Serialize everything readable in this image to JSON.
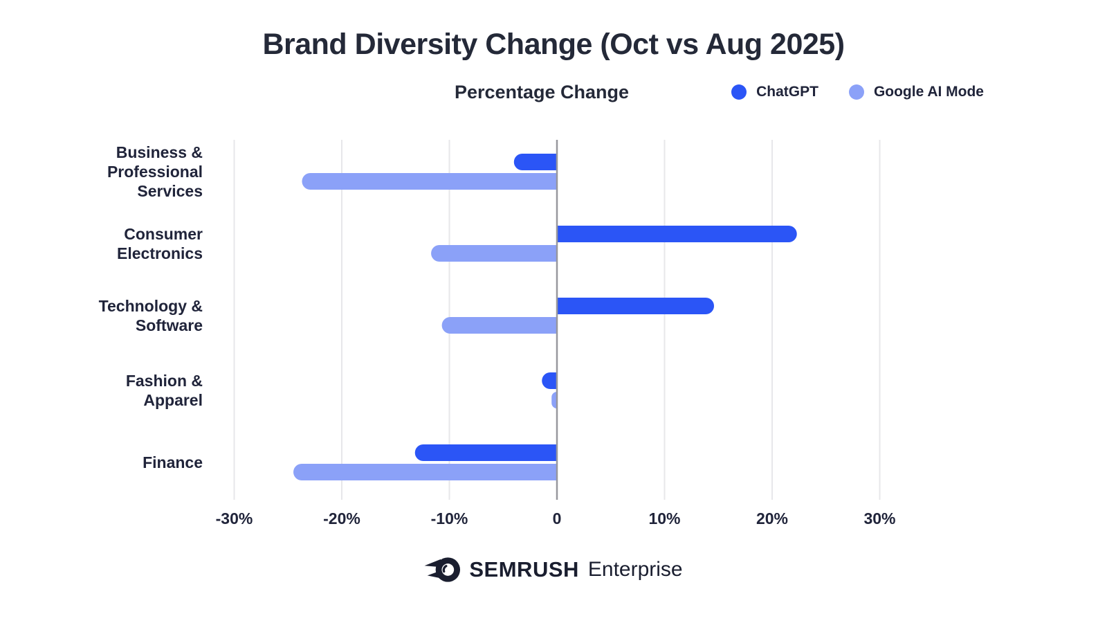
{
  "title": "Brand Diversity Change (Oct vs Aug 2025)",
  "axis_title": "Percentage Change",
  "legend": [
    {
      "label": "ChatGPT",
      "color": "#2B55F6"
    },
    {
      "label": "Google AI Mode",
      "color": "#8BA1F8"
    }
  ],
  "footer": {
    "logo_icon": "semrush-comet-logo",
    "brand": "SEMRUSH",
    "edition": "Enterprise"
  },
  "colors": {
    "chatgpt_blue": "#2B55F6",
    "google_ai_light_blue": "#8BA1F8",
    "gridline": "#e7e7ea",
    "zero_line": "#97979d",
    "text_dark": "#20243a"
  },
  "chart_data": {
    "type": "bar",
    "orientation": "horizontal",
    "title": "Brand Diversity Change (Oct vs Aug 2025)",
    "xlabel": "Percentage Change",
    "ylabel": "",
    "unit": "percent",
    "grid": true,
    "legend_position": "top-right",
    "xlim": [
      -33,
      38
    ],
    "categories": [
      "Business & Professional Services",
      "Consumer Electronics",
      "Technology & Software",
      "Fashion & Apparel",
      "Finance"
    ],
    "category_lines": [
      [
        "Business &",
        "Professional",
        "Services"
      ],
      [
        "Consumer",
        "Electronics"
      ],
      [
        "Technology &",
        "Software"
      ],
      [
        "Fashion &",
        "Apparel"
      ],
      [
        "Finance"
      ]
    ],
    "series": [
      {
        "name": "ChatGPT",
        "color": "#2B55F6",
        "values": [
          -4.0,
          22.3,
          14.6,
          -1.4,
          -13.2
        ]
      },
      {
        "name": "Google AI Mode",
        "color": "#8BA1F8",
        "values": [
          -23.7,
          -11.7,
          -10.7,
          -0.5,
          -24.5
        ]
      }
    ],
    "x_ticks": [
      {
        "value": -30,
        "label": "-30%"
      },
      {
        "value": -20,
        "label": "-20%"
      },
      {
        "value": -10,
        "label": "-10%"
      },
      {
        "value": 0,
        "label": "0"
      },
      {
        "value": 10,
        "label": "10%"
      },
      {
        "value": 20,
        "label": "20%"
      },
      {
        "value": 30,
        "label": "30%"
      }
    ]
  }
}
